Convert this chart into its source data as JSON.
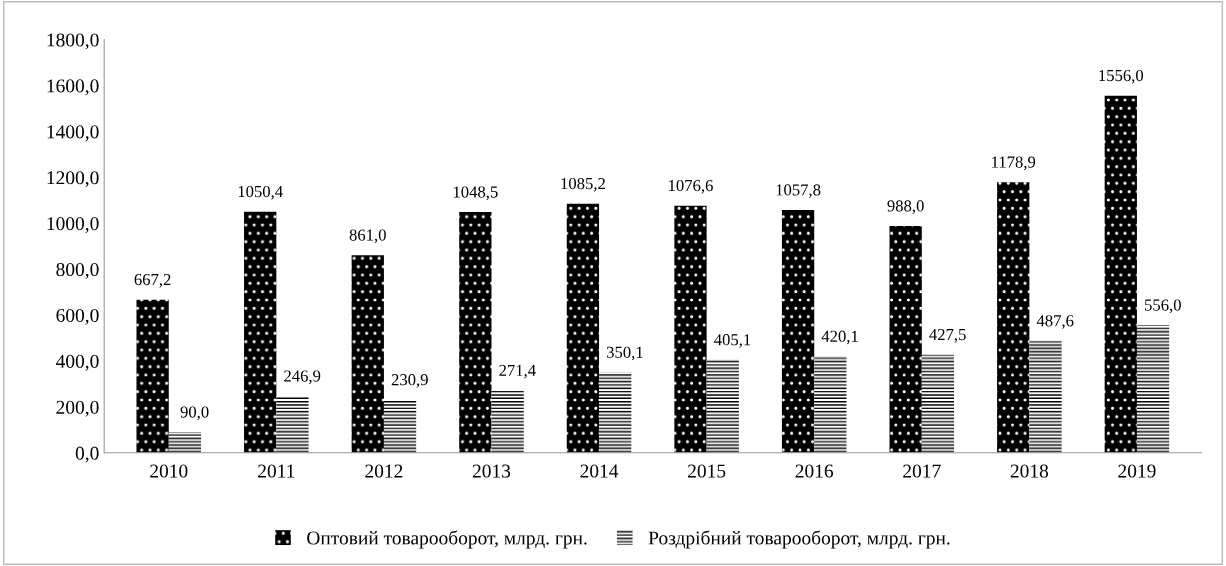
{
  "chart_data": {
    "type": "bar",
    "categories": [
      "2010",
      "2011",
      "2012",
      "2013",
      "2014",
      "2015",
      "2016",
      "2017",
      "2018",
      "2019"
    ],
    "series": [
      {
        "name": "Оптовий товарооборот, млрд. грн.",
        "color": "#000000",
        "values": [
          667.2,
          1050.4,
          861.0,
          1048.5,
          1085.2,
          1076.6,
          1057.8,
          988.0,
          1178.9,
          1556.0
        ],
        "value_labels": [
          "667,2",
          "1050,4",
          "861,0",
          "1048,5",
          "1085,2",
          "1076,6",
          "1057,8",
          "988,0",
          "1178,9",
          "1556,0"
        ]
      },
      {
        "name": "Роздрібний товарооборот, млрд. грн.",
        "color": "#ffffff",
        "values": [
          90.0,
          246.9,
          230.9,
          271.4,
          350.1,
          405.1,
          420.1,
          427.5,
          487.6,
          556.0
        ],
        "value_labels": [
          "90,0",
          "246,9",
          "230,9",
          "271,4",
          "350,1",
          "405,1",
          "420,1",
          "427,5",
          "487,6",
          "556,0"
        ]
      }
    ],
    "ylim": [
      0,
      1800
    ],
    "yticks": [
      {
        "value": 0,
        "label": "0,0"
      },
      {
        "value": 200,
        "label": "200,0"
      },
      {
        "value": 400,
        "label": "400,0"
      },
      {
        "value": 600,
        "label": "600,0"
      },
      {
        "value": 800,
        "label": "800,0"
      },
      {
        "value": 1000,
        "label": "1000,0"
      },
      {
        "value": 1200,
        "label": "1200,0"
      },
      {
        "value": 1400,
        "label": "1400,0"
      },
      {
        "value": 1600,
        "label": "1600,0"
      },
      {
        "value": 1800,
        "label": "1800,0"
      }
    ],
    "grid": false,
    "legend": "bottom"
  }
}
